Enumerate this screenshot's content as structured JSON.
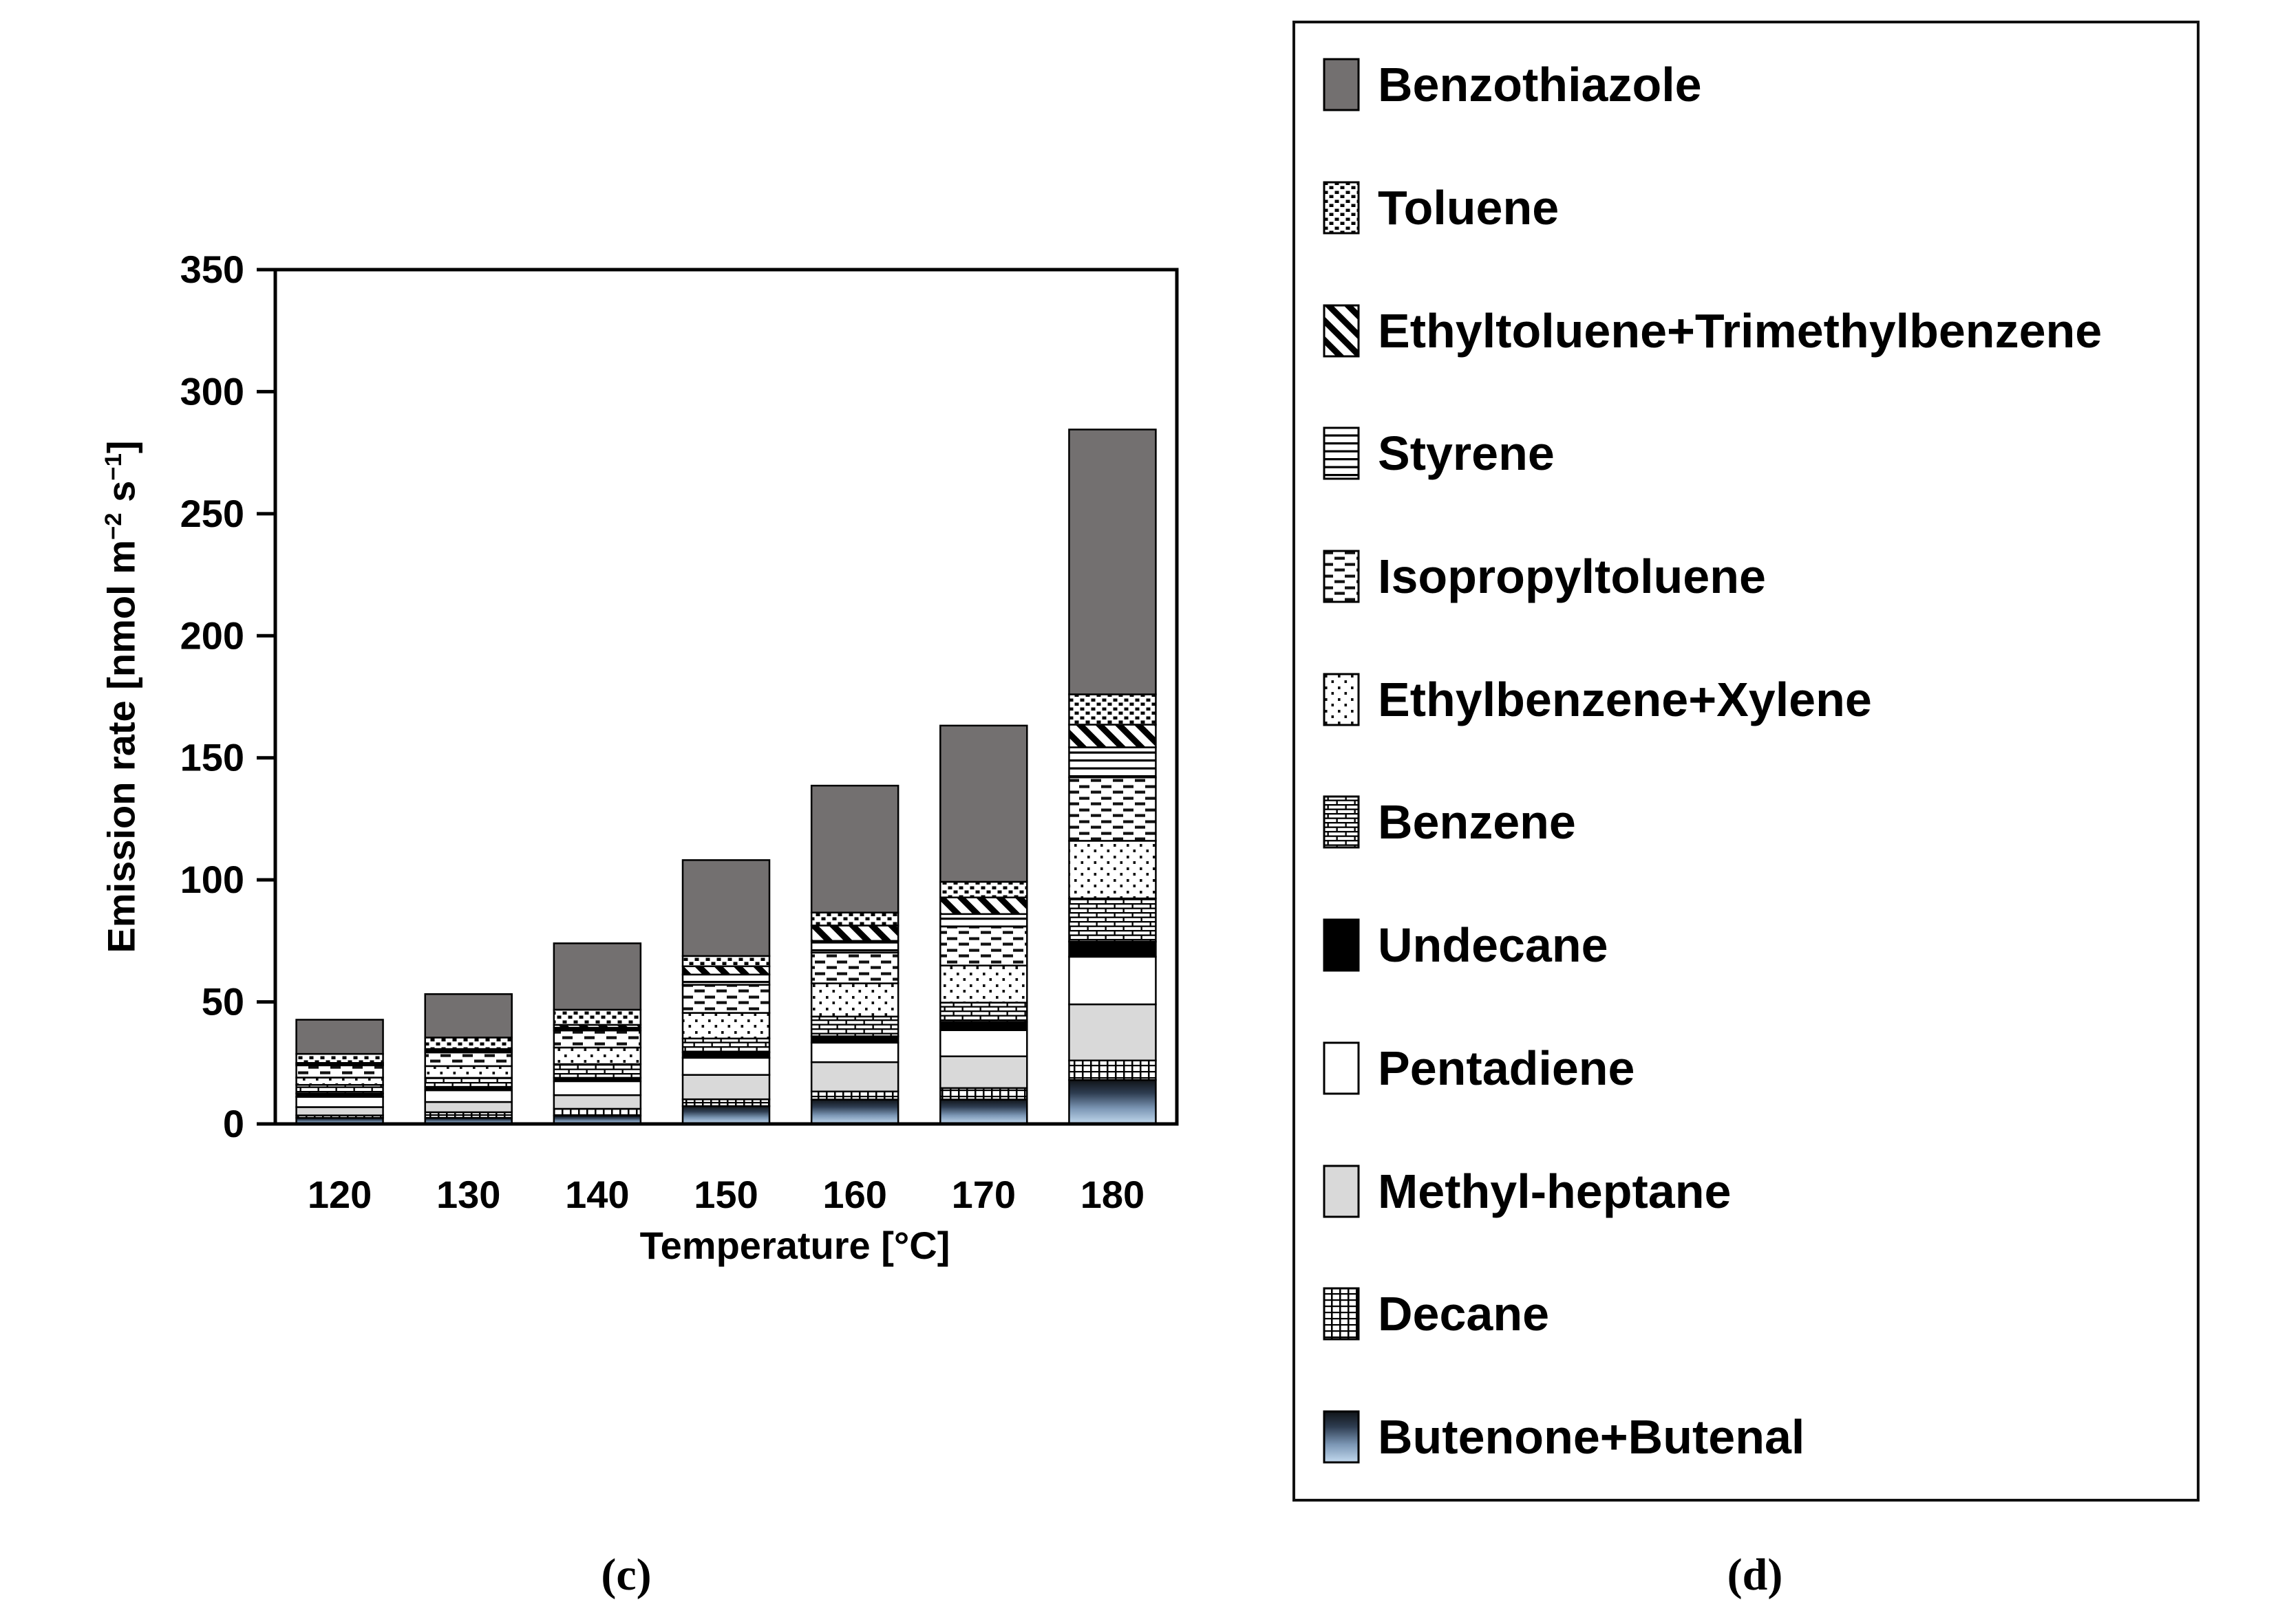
{
  "figure": {
    "caption_left": "(c)",
    "caption_right": "(d)"
  },
  "chart_data": {
    "type": "bar",
    "stacked": true,
    "title": "",
    "xlabel": "Temperature [°C]",
    "ylabel": "Emission rate [nmol m⁻² s⁻¹]",
    "ylabel_parts": {
      "t1": "Emission rate [nmol m",
      "s1": "−2",
      "t2": " s",
      "s2": "−1",
      "t3": "]"
    },
    "categories": [
      "120",
      "130",
      "140",
      "150",
      "160",
      "170",
      "180"
    ],
    "ylim": [
      0,
      350
    ],
    "ytick_step": 50,
    "grid": false,
    "legend_position": "right-outside",
    "series_bottom_to_top": [
      {
        "name": "Butenone+Butenal",
        "pattern": "blue-gradient",
        "gradient": [
          "#101418",
          "#2e3d51",
          "#7c97b5",
          "#c2d9ee"
        ],
        "values": [
          2.5,
          2.5,
          3.4,
          7.3,
          10,
          10,
          18
        ]
      },
      {
        "name": "Decane",
        "pattern": "grid",
        "color": "#000000",
        "values": [
          1,
          2.3,
          2.8,
          2.8,
          3.3,
          4.7,
          8
        ]
      },
      {
        "name": "Methyl-heptane",
        "pattern": "light-gray-solid",
        "color": "#d9d9d9",
        "values": [
          3.4,
          4.2,
          5.6,
          10,
          12,
          13,
          23
        ]
      },
      {
        "name": "Pentadiene",
        "pattern": "white-solid",
        "color": "#ffffff",
        "values": [
          4.2,
          4.8,
          5.7,
          7,
          8,
          10.7,
          19.5
        ]
      },
      {
        "name": "Undecane",
        "pattern": "black-solid",
        "color": "#000000",
        "values": [
          1.4,
          1.4,
          1.4,
          2.3,
          2.6,
          3.4,
          6.2
        ]
      },
      {
        "name": "Benzene",
        "pattern": "bricks",
        "color": "#000000",
        "values": [
          3.5,
          3.7,
          5.6,
          5.6,
          8.1,
          7.9,
          17.7
        ]
      },
      {
        "name": "Ethylbenzene+Xylene",
        "pattern": "dots",
        "color": "#111111",
        "values": [
          3,
          4.8,
          6.8,
          10.5,
          13.6,
          15.2,
          23.6
        ]
      },
      {
        "name": "Isopropyltoluene",
        "pattern": "dashes",
        "color": "#111111",
        "values": [
          5,
          5.6,
          7,
          11.5,
          12.6,
          16,
          26
        ]
      },
      {
        "name": "Styrene",
        "pattern": "h-lines",
        "color": "#000000",
        "values": [
          0.5,
          0.7,
          1.1,
          4.2,
          4.8,
          5.1,
          12.3
        ]
      },
      {
        "name": "Ethyltoluene+Trimethylbenzene",
        "pattern": "diagonal-stripes",
        "color": "#000000",
        "values": [
          0.5,
          0.7,
          1.2,
          3.4,
          6.3,
          6.8,
          9.3
        ]
      },
      {
        "name": "Toluene",
        "pattern": "dot-grid",
        "color": "#000000",
        "values": [
          3.7,
          4.7,
          6.2,
          4.2,
          5.3,
          6.4,
          12.4
        ]
      },
      {
        "name": "Benzothiazole",
        "pattern": "gray-solid",
        "color": "#737070",
        "values": [
          14,
          17.8,
          27.2,
          39.3,
          52,
          64,
          108.5
        ]
      }
    ],
    "totals": [
      42.7,
      53.2,
      74.0,
      108.1,
      138.6,
      163.2,
      284.5
    ]
  },
  "legend": {
    "items_top_to_bottom": [
      {
        "label": "Benzothiazole",
        "pattern": "gray-solid"
      },
      {
        "label": "Toluene",
        "pattern": "dot-grid"
      },
      {
        "label": "Ethyltoluene+Trimethylbenzene",
        "pattern": "diagonal-stripes"
      },
      {
        "label": "Styrene",
        "pattern": "h-lines"
      },
      {
        "label": "Isopropyltoluene",
        "pattern": "dashes"
      },
      {
        "label": "Ethylbenzene+Xylene",
        "pattern": "dots"
      },
      {
        "label": "Benzene",
        "pattern": "bricks"
      },
      {
        "label": "Undecane",
        "pattern": "black-solid"
      },
      {
        "label": "Pentadiene",
        "pattern": "white-solid"
      },
      {
        "label": "Methyl-heptane",
        "pattern": "light-gray-solid"
      },
      {
        "label": "Decane",
        "pattern": "grid"
      },
      {
        "label": "Butenone+Butenal",
        "pattern": "blue-gradient"
      }
    ]
  }
}
